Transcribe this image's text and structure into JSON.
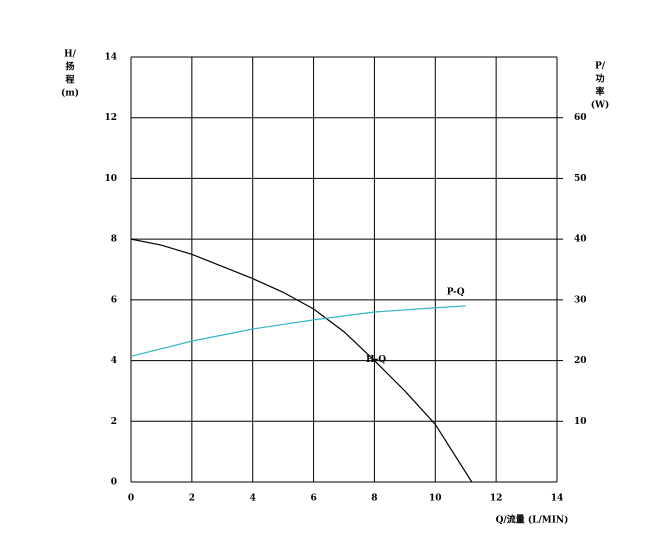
{
  "chart_data": {
    "type": "line",
    "y_label_lines": [
      "H/",
      "扬",
      "程",
      "(m)"
    ],
    "y2_label_lines": [
      "P/",
      "功",
      "率",
      "(W)"
    ],
    "x_label": "Q/流量 (L/MIN)",
    "xlim": [
      0,
      14
    ],
    "xticks": [
      0,
      2,
      4,
      6,
      8,
      10,
      12,
      14
    ],
    "ylim": [
      0,
      14
    ],
    "yticks": [
      0,
      2,
      4,
      6,
      8,
      10,
      12,
      14
    ],
    "y2lim": [
      0,
      70
    ],
    "y2ticks": [
      10,
      20,
      30,
      40,
      50,
      60
    ],
    "grid": true,
    "series": [
      {
        "name": "H-Q",
        "color": "#000000",
        "x": [
          0,
          1,
          2,
          3,
          4,
          5,
          6,
          7,
          8,
          9,
          10,
          11.2
        ],
        "values": [
          8,
          7.8,
          7.5,
          7.1,
          6.7,
          6.25,
          5.7,
          4.95,
          4.0,
          3.0,
          1.9,
          0
        ]
      },
      {
        "name": "P-Q",
        "color": "#33b5c4",
        "axis": "y2",
        "x": [
          0,
          2,
          4,
          6,
          8,
          10,
          11
        ],
        "values": [
          20.7,
          23.2,
          25.2,
          26.7,
          28,
          28.7,
          29
        ]
      }
    ]
  }
}
